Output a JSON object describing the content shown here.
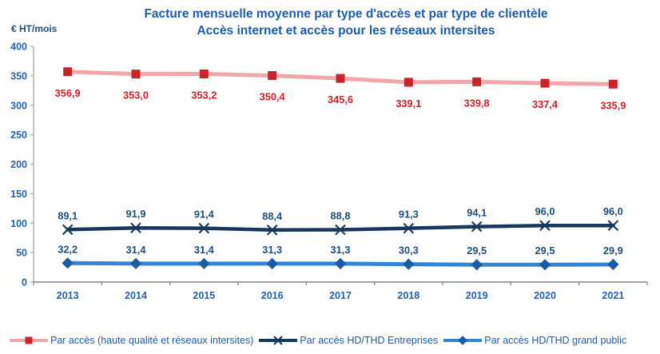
{
  "title": {
    "line1": "Facture mensuelle moyenne par type d'accès et par type de clientèle",
    "line2": "Accès internet et accès pour les réseaux intersites"
  },
  "y_axis_title": "€ HT/mois",
  "colors": {
    "title_blue": "#1D5CA9",
    "axis_tick_label_blue": "#2563AC",
    "x_axis_line": "#808080",
    "y_axis_line": "#A9A9A9",
    "background": "#FFFFFF"
  },
  "chart_data": {
    "type": "line",
    "title": "Facture mensuelle moyenne par type d'accès et par type de clientèle — Accès internet et accès pour les réseaux intersites",
    "xlabel": "",
    "ylabel": "€ HT/mois",
    "categories": [
      "2013",
      "2014",
      "2015",
      "2016",
      "2017",
      "2018",
      "2019",
      "2020",
      "2021"
    ],
    "ylim": [
      0,
      400
    ],
    "ytick_step": 50,
    "grid": false,
    "legend_position": "bottom",
    "series": [
      {
        "name": "Par accès (haute qualité et réseaux intersites)",
        "values": [
          356.9,
          353.0,
          353.2,
          350.4,
          345.6,
          339.1,
          339.8,
          337.4,
          335.9
        ],
        "labels": [
          "356,9",
          "353,0",
          "353,2",
          "350,4",
          "345,6",
          "339,1",
          "339,8",
          "337,4",
          "335,9"
        ],
        "marker": "square",
        "label_position": "below",
        "line_color": "#F1A6AA",
        "marker_color": "#C9242C",
        "label_color": "#CE2029",
        "line_width": 5
      },
      {
        "name": "Par accès HD/THD Entreprises",
        "values": [
          89.1,
          91.9,
          91.4,
          88.4,
          88.8,
          91.3,
          94.1,
          96.0,
          96.0
        ],
        "labels": [
          "89,1",
          "91,9",
          "91,4",
          "88,4",
          "88,8",
          "91,3",
          "94,1",
          "96,0",
          "96,0"
        ],
        "marker": "x",
        "label_position": "above",
        "line_color": "#17375D",
        "marker_color": "#17375D",
        "label_color": "#1F4E79",
        "line_width": 4.5
      },
      {
        "name": "Par accès HD/THD grand public",
        "values": [
          32.2,
          31.4,
          31.4,
          31.3,
          31.3,
          30.3,
          29.5,
          29.5,
          29.9
        ],
        "labels": [
          "32,2",
          "31,4",
          "31,4",
          "31,3",
          "31,3",
          "30,3",
          "29,5",
          "29,5",
          "29,9"
        ],
        "marker": "diamond",
        "label_position": "above",
        "line_color": "#3087D8",
        "marker_color": "#1A5CA3",
        "label_color": "#1F4E79",
        "line_width": 5
      }
    ]
  }
}
